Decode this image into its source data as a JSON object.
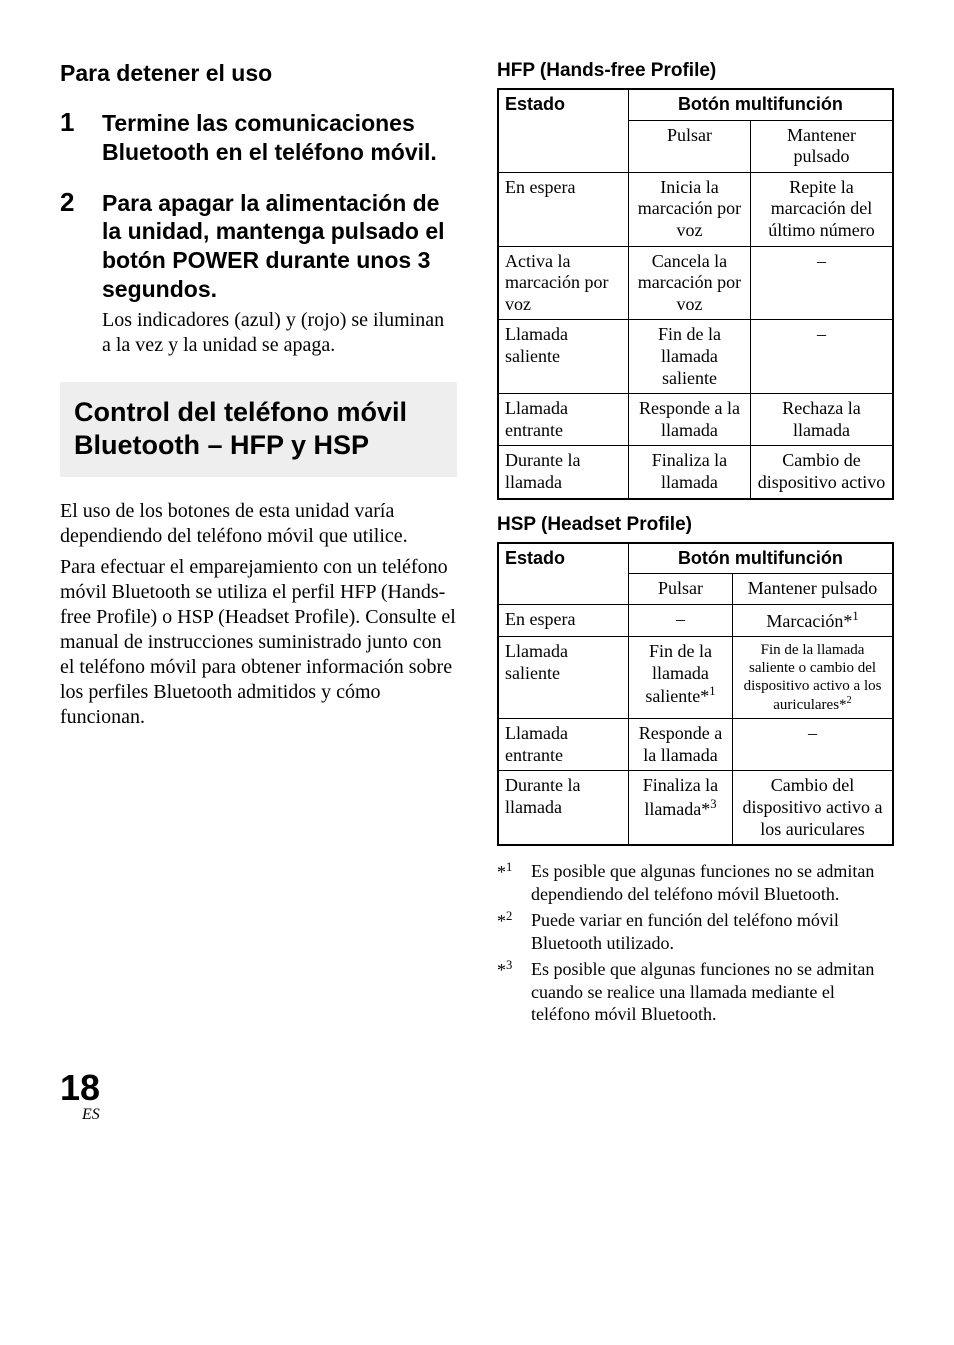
{
  "left": {
    "section_heading": "Para detener el uso",
    "steps": [
      {
        "num": "1",
        "bold": "Termine las comunicaciones Bluetooth en el teléfono móvil.",
        "text": ""
      },
      {
        "num": "2",
        "bold": "Para apagar la alimentación de la unidad, mantenga pulsado el botón POWER durante unos 3 segundos.",
        "text": "Los indicadores (azul) y (rojo) se iluminan a la vez y la unidad se apaga."
      }
    ],
    "box_heading": "Control del teléfono móvil Bluetooth – HFP y HSP",
    "para1": "El uso de los botones de esta unidad varía dependiendo del teléfono móvil que utilice.",
    "para2": "Para efectuar el emparejamiento con un teléfono móvil Bluetooth se utiliza el perfil HFP (Hands-free Profile) o HSP (Headset Profile). Consulte el manual de instrucciones suministrado junto con el teléfono móvil para obtener información sobre los perfiles Bluetooth admitidos y cómo funcionan."
  },
  "right": {
    "hfp": {
      "heading": "HFP (Hands-free Profile)",
      "th_state": "Estado",
      "th_button": "Botón multifunción",
      "sub_press": "Pulsar",
      "sub_hold": "Mantener pulsado",
      "rows": [
        {
          "state": "En espera",
          "press": "Inicia la marcación por voz",
          "hold": "Repite la marcación del último número"
        },
        {
          "state": "Activa la marcación por voz",
          "press": "Cancela la marcación por voz",
          "hold": "–"
        },
        {
          "state": "Llamada saliente",
          "press": "Fin de la llamada saliente",
          "hold": "–"
        },
        {
          "state": "Llamada entrante",
          "press": "Responde a la llamada",
          "hold": "Rechaza la llamada"
        },
        {
          "state": "Durante la llamada",
          "press": "Finaliza la llamada",
          "hold": "Cambio de dispositivo activo"
        }
      ]
    },
    "hsp": {
      "heading": "HSP (Headset Profile)",
      "th_state": "Estado",
      "th_button": "Botón multifunción",
      "sub_press": "Pulsar",
      "sub_hold": "Mantener pulsado",
      "rows": [
        {
          "state": "En espera",
          "press": "–",
          "hold": "Marcación",
          "hold_sup": "*1"
        },
        {
          "state": "Llamada saliente",
          "press": "Fin de la llamada saliente",
          "press_sup": "*1",
          "hold": "Fin de la llamada saliente o cambio del dispositivo activo a los auriculares",
          "hold_sup": "*2",
          "hold_small": true
        },
        {
          "state": "Llamada entrante",
          "press": "Responde a la llamada",
          "hold": "–"
        },
        {
          "state": "Durante la llamada",
          "press": "Finaliza la llamada",
          "press_sup": "*3",
          "hold": "Cambio del dispositivo activo a los auriculares"
        }
      ]
    },
    "footnotes": [
      {
        "marker": "*1",
        "text": "Es posible que algunas funciones no se admitan dependiendo del teléfono móvil Bluetooth."
      },
      {
        "marker": "*2",
        "text": "Puede variar en función del teléfono móvil Bluetooth utilizado."
      },
      {
        "marker": "*3",
        "text": "Es posible que algunas funciones no se admitan cuando se realice una llamada mediante el teléfono móvil Bluetooth."
      }
    ]
  },
  "footer": {
    "page_number": "18",
    "lang": "ES"
  }
}
